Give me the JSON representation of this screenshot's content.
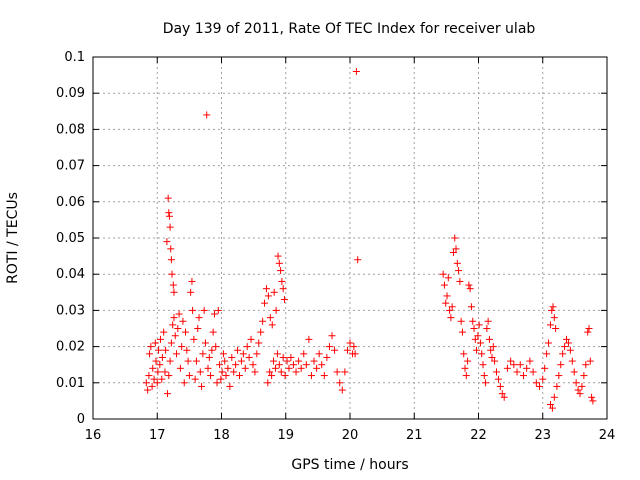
{
  "chart_data": {
    "type": "scatter",
    "title": "Day 139 of 2011, Rate Of TEC Index for receiver ulab",
    "xlabel": "GPS time / hours",
    "ylabel": "ROTI / TECUs",
    "xlim": [
      16,
      24
    ],
    "ylim": [
      0,
      0.1
    ],
    "xticks": [
      16,
      17,
      18,
      19,
      20,
      21,
      22,
      23,
      24
    ],
    "yticks": [
      0,
      0.01,
      0.02,
      0.03,
      0.04,
      0.05,
      0.06,
      0.07,
      0.08,
      0.09,
      0.1
    ],
    "xtick_labels": [
      "16",
      "17",
      "18",
      "19",
      "20",
      "21",
      "22",
      "23",
      "24"
    ],
    "ytick_labels": [
      "0",
      "0.01",
      "0.02",
      "0.03",
      "0.04",
      "0.05",
      "0.06",
      "0.07",
      "0.08",
      "0.09",
      "0.1"
    ],
    "grid": true,
    "marker": "+",
    "color": "#ff0000",
    "points": [
      [
        16.83,
        0.01
      ],
      [
        16.85,
        0.008
      ],
      [
        16.87,
        0.012
      ],
      [
        16.88,
        0.018
      ],
      [
        16.9,
        0.02
      ],
      [
        16.92,
        0.009
      ],
      [
        16.93,
        0.014
      ],
      [
        16.95,
        0.011
      ],
      [
        16.97,
        0.021
      ],
      [
        16.98,
        0.016
      ],
      [
        17.0,
        0.01
      ],
      [
        17.01,
        0.013
      ],
      [
        17.02,
        0.019
      ],
      [
        17.04,
        0.015
      ],
      [
        17.05,
        0.022
      ],
      [
        17.07,
        0.011
      ],
      [
        17.08,
        0.017
      ],
      [
        17.1,
        0.024
      ],
      [
        17.12,
        0.013
      ],
      [
        17.13,
        0.019
      ],
      [
        17.15,
        0.049
      ],
      [
        17.17,
        0.061
      ],
      [
        17.18,
        0.057
      ],
      [
        17.19,
        0.056
      ],
      [
        17.2,
        0.053
      ],
      [
        17.21,
        0.047
      ],
      [
        17.22,
        0.044
      ],
      [
        17.23,
        0.04
      ],
      [
        17.25,
        0.037
      ],
      [
        17.26,
        0.035
      ],
      [
        17.16,
        0.007
      ],
      [
        17.18,
        0.012
      ],
      [
        17.2,
        0.016
      ],
      [
        17.22,
        0.021
      ],
      [
        17.24,
        0.026
      ],
      [
        17.26,
        0.028
      ],
      [
        17.28,
        0.023
      ],
      [
        17.3,
        0.018
      ],
      [
        17.32,
        0.025
      ],
      [
        17.34,
        0.029
      ],
      [
        17.36,
        0.014
      ],
      [
        17.38,
        0.02
      ],
      [
        17.4,
        0.027
      ],
      [
        17.42,
        0.01
      ],
      [
        17.44,
        0.024
      ],
      [
        17.46,
        0.019
      ],
      [
        17.48,
        0.016
      ],
      [
        17.5,
        0.012
      ],
      [
        17.52,
        0.035
      ],
      [
        17.54,
        0.038
      ],
      [
        17.55,
        0.03
      ],
      [
        17.57,
        0.022
      ],
      [
        17.59,
        0.011
      ],
      [
        17.61,
        0.016
      ],
      [
        17.63,
        0.025
      ],
      [
        17.65,
        0.028
      ],
      [
        17.67,
        0.013
      ],
      [
        17.69,
        0.009
      ],
      [
        17.71,
        0.018
      ],
      [
        17.73,
        0.03
      ],
      [
        17.75,
        0.021
      ],
      [
        17.77,
        0.084
      ],
      [
        17.79,
        0.014
      ],
      [
        17.81,
        0.017
      ],
      [
        17.83,
        0.012
      ],
      [
        17.85,
        0.019
      ],
      [
        17.87,
        0.024
      ],
      [
        17.89,
        0.029
      ],
      [
        17.91,
        0.02
      ],
      [
        17.93,
        0.01
      ],
      [
        17.95,
        0.03
      ],
      [
        17.97,
        0.015
      ],
      [
        17.99,
        0.011
      ],
      [
        18.01,
        0.013
      ],
      [
        18.03,
        0.018
      ],
      [
        18.05,
        0.016
      ],
      [
        18.07,
        0.012
      ],
      [
        18.1,
        0.014
      ],
      [
        18.13,
        0.009
      ],
      [
        18.16,
        0.017
      ],
      [
        18.19,
        0.013
      ],
      [
        18.22,
        0.015
      ],
      [
        18.25,
        0.019
      ],
      [
        18.28,
        0.012
      ],
      [
        18.31,
        0.016
      ],
      [
        18.34,
        0.018
      ],
      [
        18.37,
        0.014
      ],
      [
        18.4,
        0.02
      ],
      [
        18.43,
        0.017
      ],
      [
        18.46,
        0.022
      ],
      [
        18.49,
        0.015
      ],
      [
        18.52,
        0.013
      ],
      [
        18.55,
        0.018
      ],
      [
        18.58,
        0.021
      ],
      [
        18.61,
        0.024
      ],
      [
        18.64,
        0.027
      ],
      [
        18.67,
        0.032
      ],
      [
        18.7,
        0.036
      ],
      [
        18.73,
        0.034
      ],
      [
        18.76,
        0.028
      ],
      [
        18.79,
        0.026
      ],
      [
        18.82,
        0.035
      ],
      [
        18.85,
        0.03
      ],
      [
        18.88,
        0.045
      ],
      [
        18.9,
        0.043
      ],
      [
        18.92,
        0.041
      ],
      [
        18.94,
        0.038
      ],
      [
        18.96,
        0.036
      ],
      [
        18.98,
        0.033
      ],
      [
        18.72,
        0.01
      ],
      [
        18.75,
        0.013
      ],
      [
        18.78,
        0.012
      ],
      [
        18.81,
        0.016
      ],
      [
        18.84,
        0.014
      ],
      [
        18.87,
        0.018
      ],
      [
        18.9,
        0.015
      ],
      [
        18.93,
        0.013
      ],
      [
        18.96,
        0.017
      ],
      [
        18.99,
        0.012
      ],
      [
        19.02,
        0.016
      ],
      [
        19.05,
        0.014
      ],
      [
        19.08,
        0.017
      ],
      [
        19.12,
        0.015
      ],
      [
        19.16,
        0.013
      ],
      [
        19.2,
        0.016
      ],
      [
        19.24,
        0.014
      ],
      [
        19.28,
        0.018
      ],
      [
        19.32,
        0.015
      ],
      [
        19.36,
        0.022
      ],
      [
        19.4,
        0.012
      ],
      [
        19.44,
        0.016
      ],
      [
        19.48,
        0.014
      ],
      [
        19.52,
        0.018
      ],
      [
        19.56,
        0.015
      ],
      [
        19.6,
        0.012
      ],
      [
        19.64,
        0.017
      ],
      [
        19.68,
        0.02
      ],
      [
        19.72,
        0.023
      ],
      [
        19.76,
        0.019
      ],
      [
        19.8,
        0.013
      ],
      [
        19.84,
        0.01
      ],
      [
        19.88,
        0.008
      ],
      [
        19.92,
        0.013
      ],
      [
        19.96,
        0.019
      ],
      [
        20.0,
        0.021
      ],
      [
        20.04,
        0.018
      ],
      [
        20.08,
        0.018
      ],
      [
        20.1,
        0.096
      ],
      [
        20.12,
        0.044
      ],
      [
        20.06,
        0.02
      ],
      [
        21.45,
        0.04
      ],
      [
        21.47,
        0.037
      ],
      [
        21.49,
        0.032
      ],
      [
        21.51,
        0.034
      ],
      [
        21.53,
        0.039
      ],
      [
        21.55,
        0.03
      ],
      [
        21.57,
        0.028
      ],
      [
        21.59,
        0.031
      ],
      [
        21.61,
        0.046
      ],
      [
        21.63,
        0.05
      ],
      [
        21.65,
        0.047
      ],
      [
        21.67,
        0.043
      ],
      [
        21.69,
        0.041
      ],
      [
        21.71,
        0.038
      ],
      [
        21.73,
        0.027
      ],
      [
        21.75,
        0.024
      ],
      [
        21.77,
        0.018
      ],
      [
        21.79,
        0.014
      ],
      [
        21.81,
        0.012
      ],
      [
        21.83,
        0.016
      ],
      [
        21.85,
        0.037
      ],
      [
        21.87,
        0.036
      ],
      [
        21.89,
        0.031
      ],
      [
        21.91,
        0.027
      ],
      [
        21.93,
        0.025
      ],
      [
        21.95,
        0.022
      ],
      [
        21.97,
        0.019
      ],
      [
        21.99,
        0.023
      ],
      [
        22.01,
        0.026
      ],
      [
        22.03,
        0.021
      ],
      [
        22.05,
        0.018
      ],
      [
        22.07,
        0.015
      ],
      [
        22.09,
        0.012
      ],
      [
        22.11,
        0.01
      ],
      [
        22.13,
        0.025
      ],
      [
        22.15,
        0.027
      ],
      [
        22.17,
        0.022
      ],
      [
        22.19,
        0.019
      ],
      [
        22.21,
        0.017
      ],
      [
        22.23,
        0.02
      ],
      [
        22.25,
        0.016
      ],
      [
        22.28,
        0.013
      ],
      [
        22.31,
        0.011
      ],
      [
        22.34,
        0.009
      ],
      [
        22.37,
        0.007
      ],
      [
        22.4,
        0.006
      ],
      [
        22.45,
        0.014
      ],
      [
        22.5,
        0.016
      ],
      [
        22.55,
        0.015
      ],
      [
        22.6,
        0.013
      ],
      [
        22.65,
        0.015
      ],
      [
        22.7,
        0.012
      ],
      [
        22.75,
        0.014
      ],
      [
        22.8,
        0.016
      ],
      [
        22.85,
        0.013
      ],
      [
        22.9,
        0.01
      ],
      [
        22.95,
        0.009
      ],
      [
        23.0,
        0.011
      ],
      [
        23.03,
        0.014
      ],
      [
        23.06,
        0.018
      ],
      [
        23.09,
        0.021
      ],
      [
        23.12,
        0.026
      ],
      [
        23.14,
        0.03
      ],
      [
        23.16,
        0.031
      ],
      [
        23.18,
        0.028
      ],
      [
        23.2,
        0.025
      ],
      [
        23.12,
        0.004
      ],
      [
        23.15,
        0.003
      ],
      [
        23.18,
        0.006
      ],
      [
        23.22,
        0.009
      ],
      [
        23.25,
        0.012
      ],
      [
        23.28,
        0.015
      ],
      [
        23.31,
        0.018
      ],
      [
        23.34,
        0.02
      ],
      [
        23.37,
        0.022
      ],
      [
        23.4,
        0.021
      ],
      [
        23.43,
        0.019
      ],
      [
        23.46,
        0.016
      ],
      [
        23.49,
        0.013
      ],
      [
        23.52,
        0.01
      ],
      [
        23.55,
        0.008
      ],
      [
        23.58,
        0.007
      ],
      [
        23.61,
        0.009
      ],
      [
        23.64,
        0.012
      ],
      [
        23.67,
        0.015
      ],
      [
        23.7,
        0.024
      ],
      [
        23.72,
        0.025
      ],
      [
        23.74,
        0.016
      ],
      [
        23.76,
        0.006
      ],
      [
        23.78,
        0.005
      ]
    ]
  }
}
